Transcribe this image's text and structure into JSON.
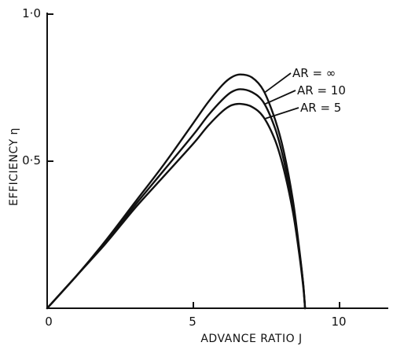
{
  "chart_data": {
    "type": "line",
    "xlabel": "ADVANCE RATIO J",
    "ylabel": "EFFICIENCY η",
    "xlim": [
      0,
      12
    ],
    "ylim": [
      0,
      1.0
    ],
    "xticks": [
      {
        "value": 0,
        "label": "0"
      },
      {
        "value": 5,
        "label": "5"
      },
      {
        "value": 10,
        "label": "10"
      }
    ],
    "yticks": [
      {
        "value": 0.5,
        "label": "0·5"
      },
      {
        "value": 1.0,
        "label": "1·0"
      }
    ],
    "grid": false,
    "series": [
      {
        "name": "AR = ∞",
        "x": [
          0,
          1,
          2,
          3,
          4,
          5,
          5.5,
          6,
          6.3,
          6.6,
          7,
          7.4,
          7.8,
          8.1,
          8.4,
          8.6,
          8.75,
          8.82
        ],
        "y": [
          0,
          0.11,
          0.23,
          0.36,
          0.49,
          0.63,
          0.7,
          0.76,
          0.785,
          0.795,
          0.785,
          0.74,
          0.64,
          0.53,
          0.37,
          0.22,
          0.09,
          0
        ]
      },
      {
        "name": "AR = 10",
        "x": [
          0,
          1,
          2,
          3,
          4,
          5,
          5.5,
          6,
          6.3,
          6.6,
          7,
          7.4,
          7.8,
          8.1,
          8.4,
          8.6,
          8.75,
          8.82
        ],
        "y": [
          0,
          0.11,
          0.225,
          0.35,
          0.47,
          0.59,
          0.655,
          0.71,
          0.735,
          0.745,
          0.735,
          0.7,
          0.61,
          0.5,
          0.35,
          0.21,
          0.09,
          0
        ]
      },
      {
        "name": "AR = 5",
        "x": [
          0,
          1,
          2,
          3,
          4,
          5,
          5.5,
          6,
          6.3,
          6.6,
          7,
          7.4,
          7.8,
          8.1,
          8.4,
          8.6,
          8.75,
          8.82
        ],
        "y": [
          0,
          0.11,
          0.22,
          0.34,
          0.45,
          0.56,
          0.62,
          0.67,
          0.69,
          0.695,
          0.685,
          0.65,
          0.57,
          0.47,
          0.33,
          0.2,
          0.08,
          0
        ]
      }
    ]
  }
}
